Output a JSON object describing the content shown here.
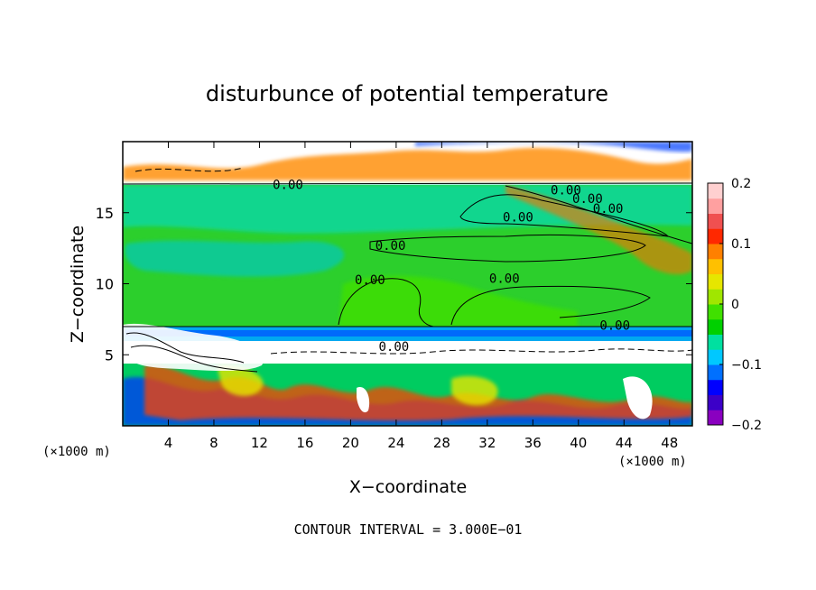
{
  "chart_data": {
    "type": "heatmap",
    "title": "disturbunce of potential temperature",
    "xlabel": "X−coordinate",
    "ylabel": "Z−coordinate",
    "x_unit": "(×1000 m)",
    "z_unit": "(×1000 m)",
    "xlim": [
      0,
      50
    ],
    "ylim": [
      0,
      20
    ],
    "x_ticks": [
      4,
      8,
      12,
      16,
      20,
      24,
      28,
      32,
      36,
      40,
      44,
      48
    ],
    "y_ticks": [
      5,
      10,
      15
    ],
    "colorbar": {
      "range": [
        -0.2,
        0.2
      ],
      "tick_values": [
        0.2,
        0.1,
        0,
        -0.1,
        -0.2
      ],
      "tick_labels": [
        "0.2",
        "0.1",
        "0",
        "−0.1",
        "−0.2"
      ],
      "colors": [
        "#8a00c0",
        "#3c00c8",
        "#0000ff",
        "#0070ff",
        "#00c8ff",
        "#00e0a0",
        "#00d000",
        "#40e000",
        "#a0e600",
        "#e6e600",
        "#ffc000",
        "#ff8000",
        "#ff2800",
        "#f05050",
        "#ffa0a0",
        "#ffd0d0"
      ]
    },
    "contour_labels": [
      {
        "text": "0.00",
        "x": 14.5,
        "z": 16.8
      },
      {
        "text": "0.00",
        "x": 34.7,
        "z": 14.5
      },
      {
        "text": "0.00",
        "x": 23.5,
        "z": 12.5
      },
      {
        "text": "0.00",
        "x": 21.7,
        "z": 10.1
      },
      {
        "text": "0.00",
        "x": 33.5,
        "z": 10.2
      },
      {
        "text": "0.00",
        "x": 43.2,
        "z": 6.9
      },
      {
        "text": "0.00",
        "x": 23.8,
        "z": 5.4
      },
      {
        "text": "0.00",
        "x": 38.9,
        "z": 16.4
      },
      {
        "text": "0.00",
        "x": 40.8,
        "z": 15.8
      },
      {
        "text": "0.00",
        "x": 42.6,
        "z": 15.1
      }
    ],
    "footer": "CONTOUR INTERVAL = 3.000E−01"
  }
}
